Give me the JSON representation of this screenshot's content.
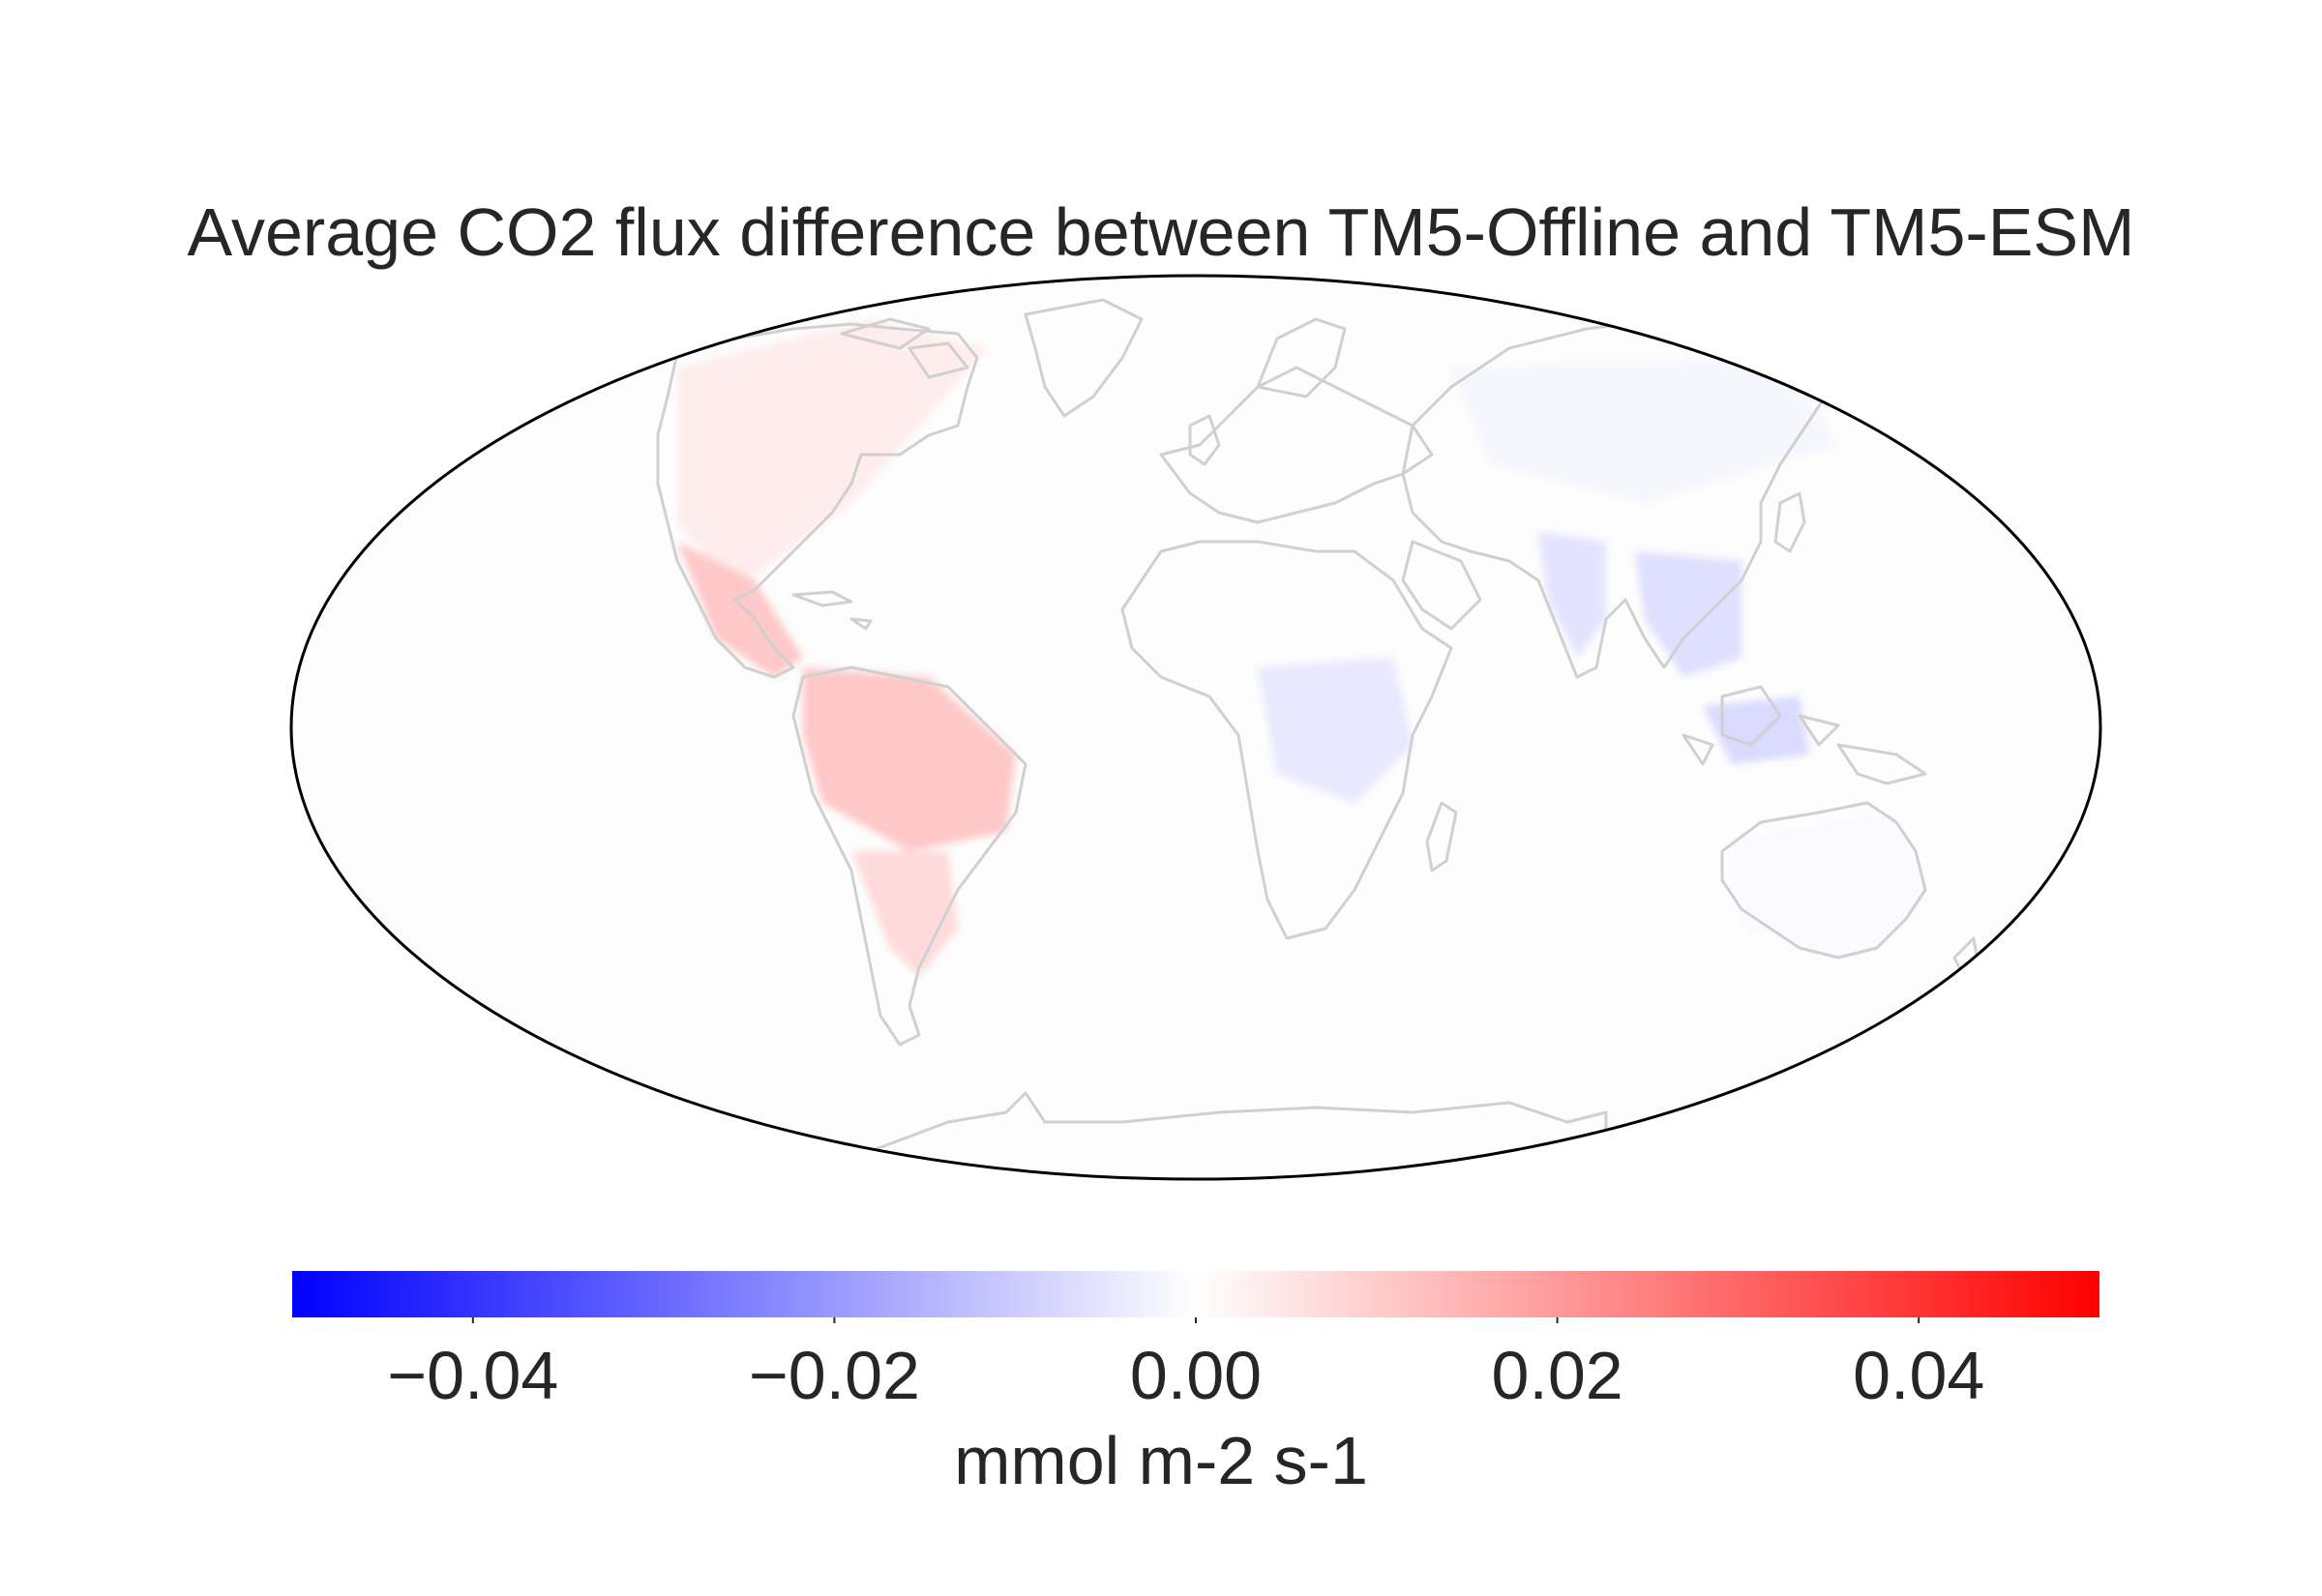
{
  "map": {
    "title": "Average CO2 flux difference between TM5-Offline and TM5-ESM",
    "projection": "mollweide",
    "coastline_color": "#d0d0d0",
    "outline_color": "#000000",
    "regions": [
      {
        "name": "North America",
        "value": 0.004
      },
      {
        "name": "Central America",
        "value": 0.012
      },
      {
        "name": "Amazon",
        "value": 0.012
      },
      {
        "name": "South America south",
        "value": 0.008
      },
      {
        "name": "Central Africa",
        "value": -0.005
      },
      {
        "name": "India",
        "value": -0.006
      },
      {
        "name": "Southeast Asia",
        "value": -0.007
      },
      {
        "name": "Indonesia",
        "value": -0.008
      },
      {
        "name": "Siberia",
        "value": -0.002
      },
      {
        "name": "Australia",
        "value": -0.001
      }
    ]
  },
  "colorbar": {
    "colormap": "bwr",
    "min": -0.05,
    "max": 0.05,
    "ticks": [
      {
        "value": -0.04,
        "label": "−0.04"
      },
      {
        "value": -0.02,
        "label": "−0.02"
      },
      {
        "value": 0.0,
        "label": "0.00"
      },
      {
        "value": 0.02,
        "label": "0.02"
      },
      {
        "value": 0.04,
        "label": "0.04"
      }
    ],
    "label": "mmol m-2 s-1",
    "colors": {
      "low": "#0000ff",
      "mid": "#ffffff",
      "high": "#ff0000"
    }
  }
}
